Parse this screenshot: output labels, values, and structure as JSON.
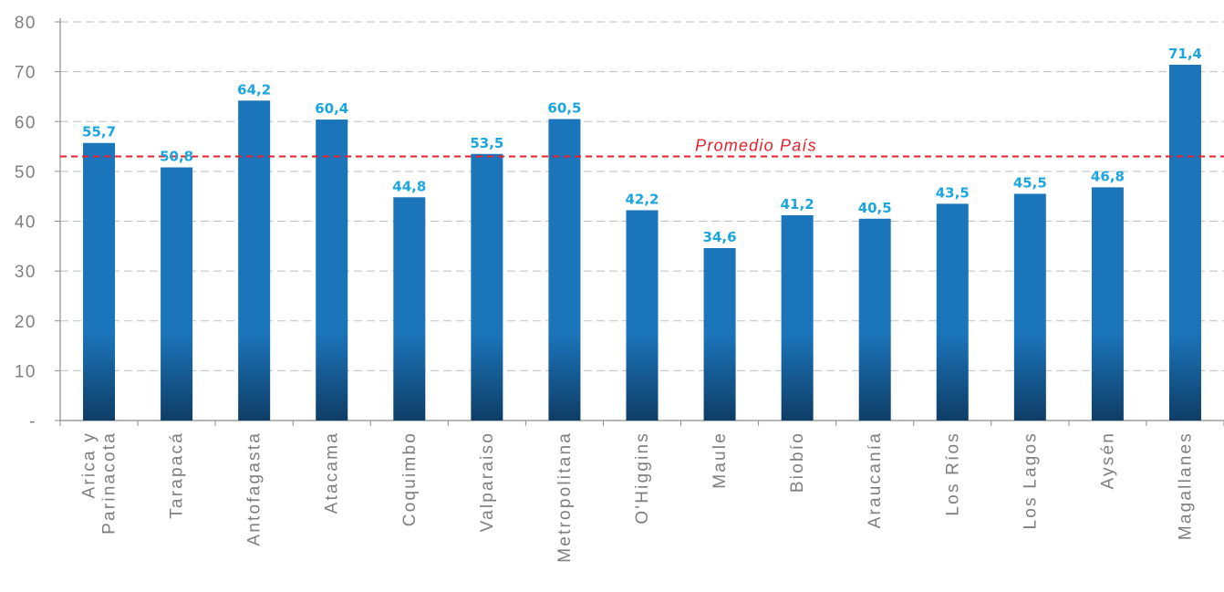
{
  "chart_data": {
    "type": "bar",
    "categories": [
      [
        "Arica y",
        "Parinacota"
      ],
      [
        "Tarapacá"
      ],
      [
        "Antofagasta"
      ],
      [
        "Atacama"
      ],
      [
        "Coquimbo"
      ],
      [
        "Valparaiso"
      ],
      [
        "Metropolitana"
      ],
      [
        "O'Higgins"
      ],
      [
        "Maule"
      ],
      [
        "Biobío"
      ],
      [
        "Araucanía"
      ],
      [
        "Los Ríos"
      ],
      [
        "Los Lagos"
      ],
      [
        "Aysén"
      ],
      [
        "Magallanes"
      ]
    ],
    "values": [
      55.7,
      50.8,
      64.2,
      60.4,
      44.8,
      53.5,
      60.5,
      42.2,
      34.6,
      41.2,
      40.5,
      43.5,
      45.5,
      46.8,
      71.4
    ],
    "value_labels": [
      "55,7",
      "50,8",
      "64,2",
      "60,4",
      "44,8",
      "53,5",
      "60,5",
      "42,2",
      "34,6",
      "41,2",
      "40,5",
      "43,5",
      "45,5",
      "46,8",
      "71,4"
    ],
    "ylim": [
      0,
      80
    ],
    "yticks": [
      0,
      10,
      20,
      30,
      40,
      50,
      60,
      70,
      80
    ],
    "ytick_labels": [
      "-",
      "10",
      "20",
      "30",
      "40",
      "50",
      "60",
      "70",
      "80"
    ],
    "grid": true,
    "reference_line": {
      "label": "Promedio País",
      "value": 53,
      "color": "#e8202a"
    },
    "colors": {
      "bar_top": "#1b75bb",
      "bar_bottom": "#0e3d66",
      "data_label": "#1ca6e0",
      "axis_text": "#7f7f7f",
      "grid": "#bfbfbf"
    },
    "xlabel": "",
    "ylabel": "",
    "title": ""
  }
}
